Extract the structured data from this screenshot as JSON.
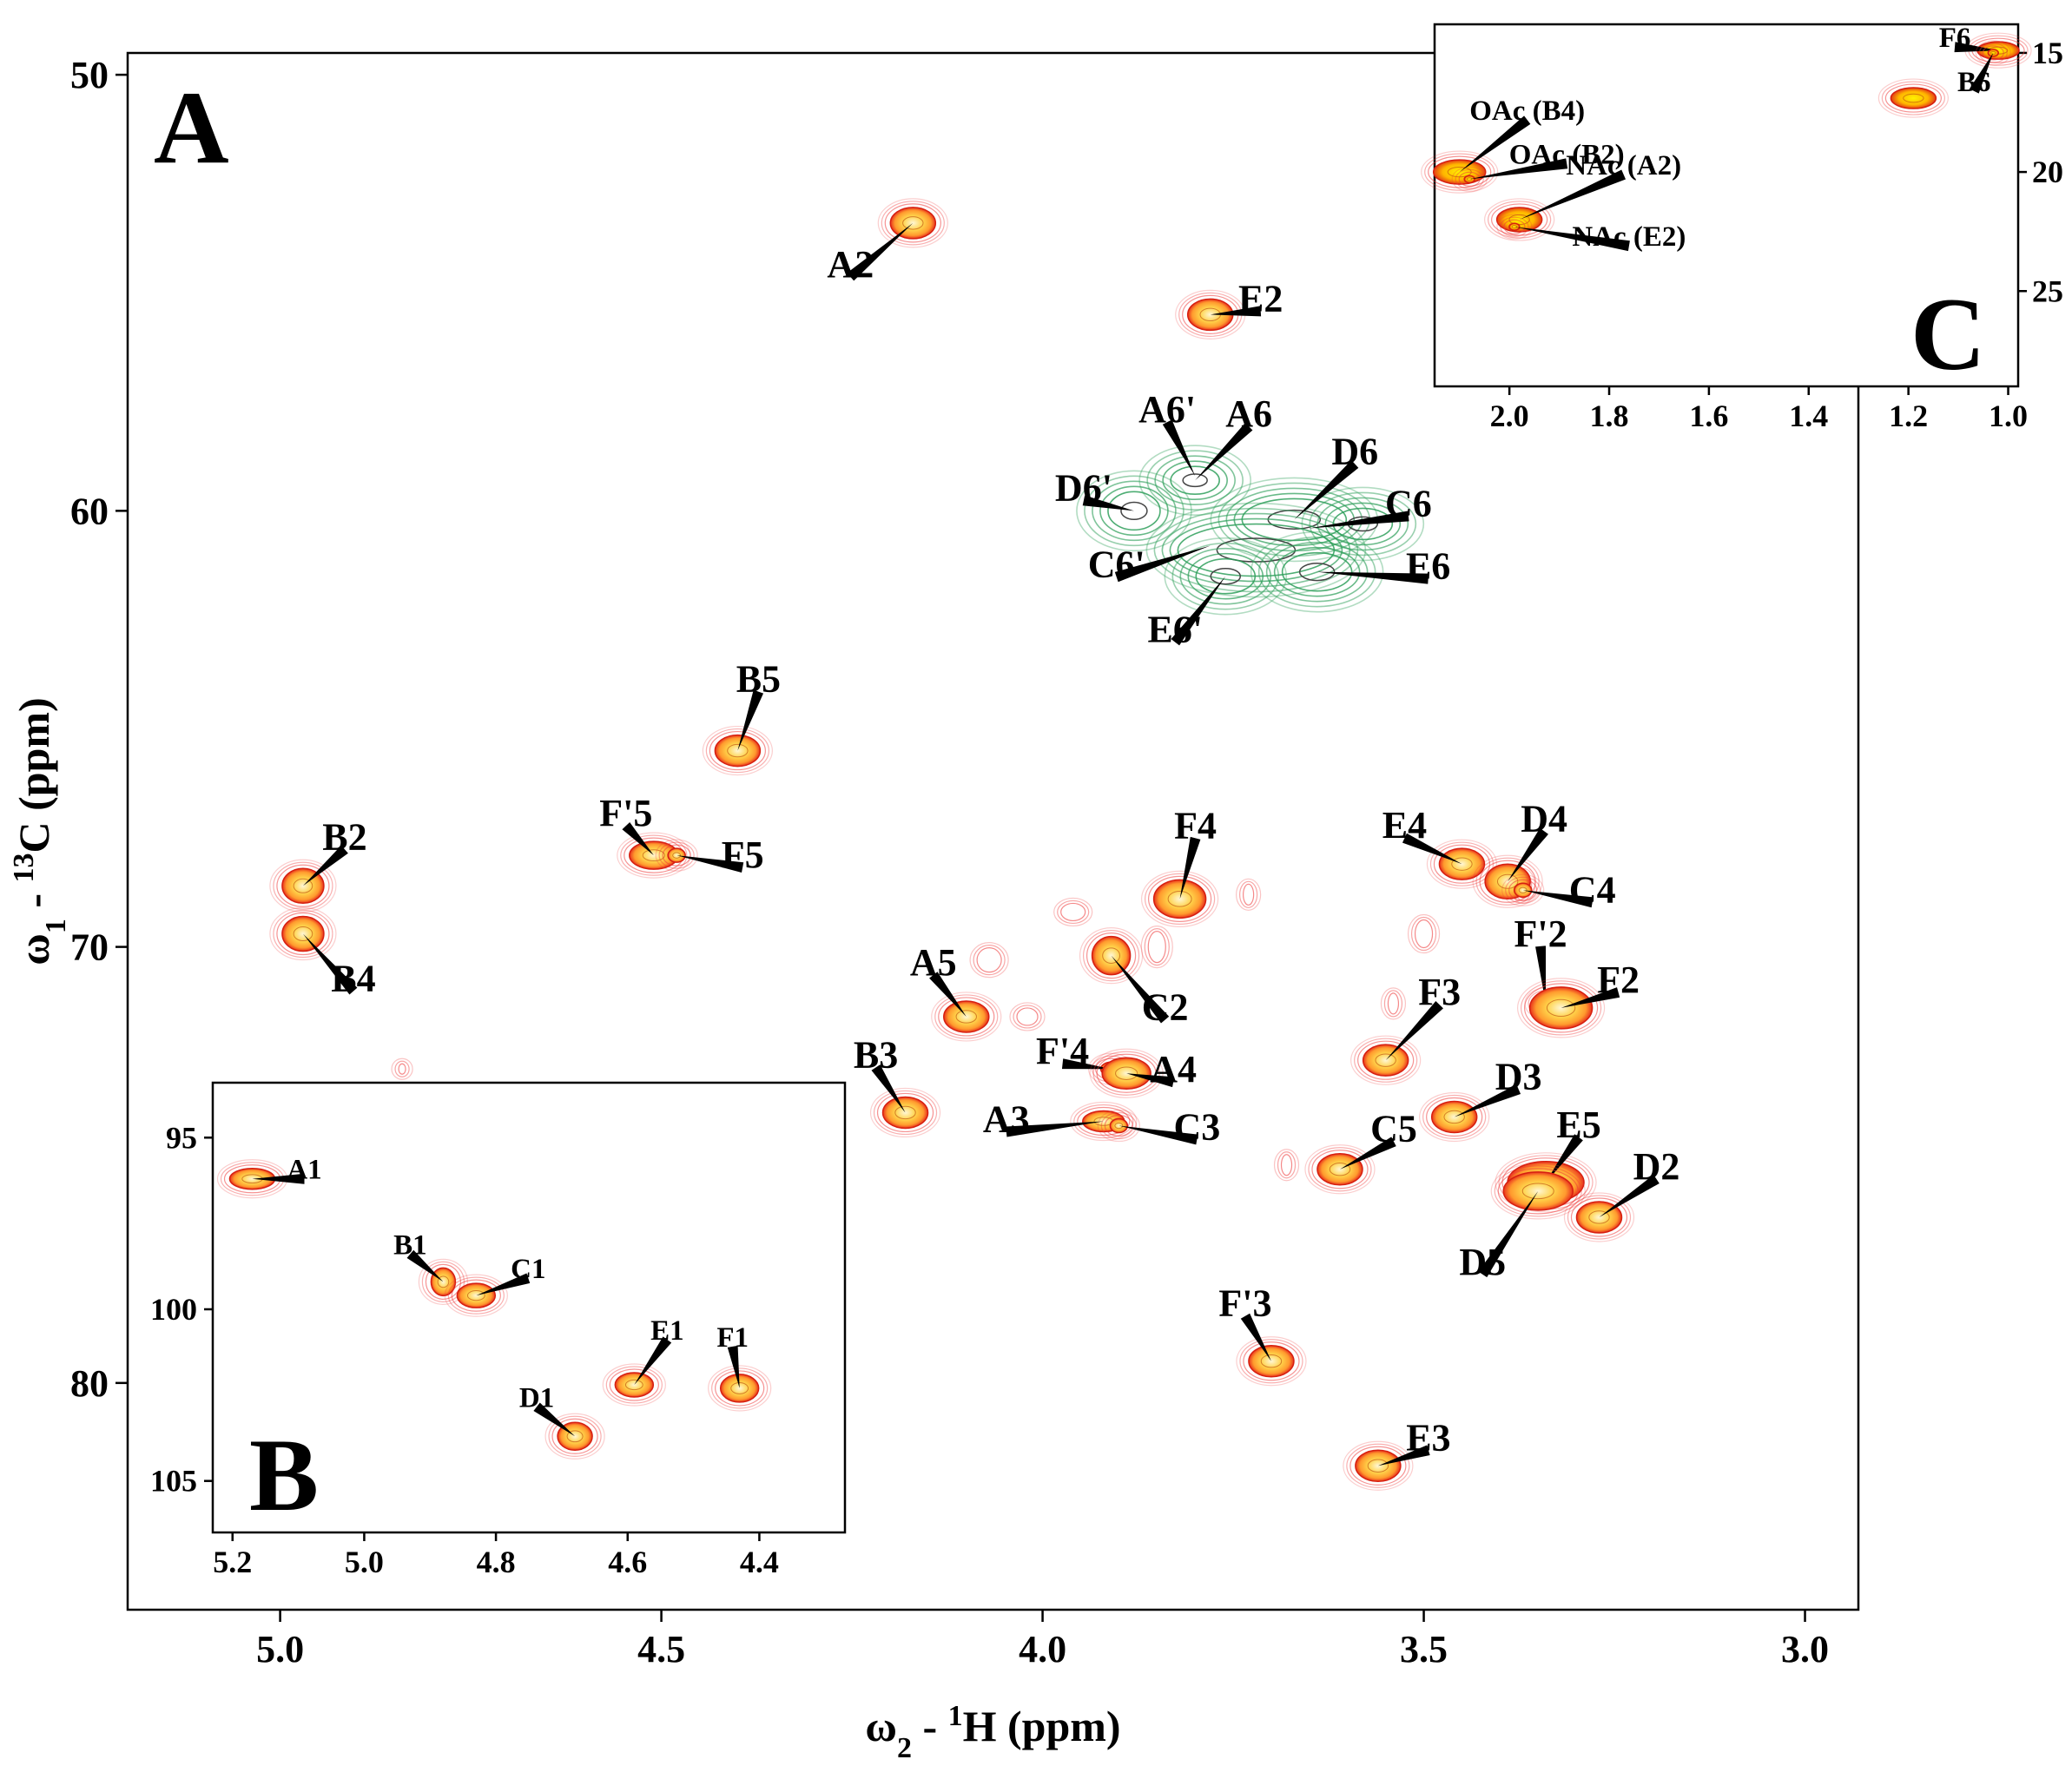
{
  "chart_data": [
    {
      "panel": "A",
      "type": "scatter",
      "subtype": "2D HSQC NMR spectrum",
      "xlabel_parts": [
        "ω",
        "2",
        " - ",
        "1",
        "H  (ppm)"
      ],
      "ylabel_parts": [
        "ω",
        "1",
        " - ",
        "13",
        "C  (ppm)"
      ],
      "xlim": [
        5.2,
        2.93
      ],
      "ylim": [
        49.5,
        85.2
      ],
      "x_ticks": [
        5.0,
        4.5,
        4.0,
        3.5,
        3.0
      ],
      "x_tick_labels": [
        "5.0",
        "4.5",
        "4.0",
        "3.5",
        "3.0"
      ],
      "y_ticks": [
        50,
        60,
        70,
        80
      ],
      "y_tick_labels": [
        "50",
        "60",
        "70",
        "80"
      ],
      "peaks": [
        {
          "label": "A2",
          "x": 4.17,
          "y": 53.4
        },
        {
          "label": "E2",
          "x": 3.78,
          "y": 55.5
        },
        {
          "label": "A6'",
          "x": 3.8,
          "y": 59.2
        },
        {
          "label": "A6",
          "x": 3.8,
          "y": 59.3
        },
        {
          "label": "D6'",
          "x": 3.88,
          "y": 60.0
        },
        {
          "label": "D6",
          "x": 3.67,
          "y": 60.2
        },
        {
          "label": "C6",
          "x": 3.65,
          "y": 60.4
        },
        {
          "label": "C6'",
          "x": 3.78,
          "y": 60.8
        },
        {
          "label": "E6",
          "x": 3.64,
          "y": 61.4
        },
        {
          "label": "E6'",
          "x": 3.76,
          "y": 61.5
        },
        {
          "label": "B5",
          "x": 4.4,
          "y": 65.5
        },
        {
          "label": "F'5",
          "x": 4.51,
          "y": 67.9
        },
        {
          "label": "F5",
          "x": 4.48,
          "y": 67.9
        },
        {
          "label": "B2",
          "x": 4.97,
          "y": 68.6
        },
        {
          "label": "B4",
          "x": 4.97,
          "y": 69.7
        },
        {
          "label": "F4",
          "x": 3.82,
          "y": 68.9
        },
        {
          "label": "E4",
          "x": 3.45,
          "y": 68.1
        },
        {
          "label": "D4",
          "x": 3.39,
          "y": 68.5
        },
        {
          "label": "C4",
          "x": 3.37,
          "y": 68.7
        },
        {
          "label": "C2",
          "x": 3.91,
          "y": 70.2
        },
        {
          "label": "F'2",
          "x": 3.34,
          "y": 71.3
        },
        {
          "label": "F2",
          "x": 3.32,
          "y": 71.4
        },
        {
          "label": "A5",
          "x": 4.1,
          "y": 71.6
        },
        {
          "label": "F3",
          "x": 3.55,
          "y": 72.6
        },
        {
          "label": "F'4",
          "x": 3.91,
          "y": 72.8
        },
        {
          "label": "A4",
          "x": 3.89,
          "y": 72.9
        },
        {
          "label": "B3",
          "x": 4.18,
          "y": 73.8
        },
        {
          "label": "A3",
          "x": 3.92,
          "y": 74.0
        },
        {
          "label": "C3",
          "x": 3.9,
          "y": 74.1
        },
        {
          "label": "D3",
          "x": 3.46,
          "y": 73.9
        },
        {
          "label": "C5",
          "x": 3.61,
          "y": 75.1
        },
        {
          "label": "E5",
          "x": 3.34,
          "y": 75.4
        },
        {
          "label": "D5",
          "x": 3.35,
          "y": 75.6
        },
        {
          "label": "D2",
          "x": 3.27,
          "y": 76.2
        },
        {
          "label": "F'3",
          "x": 3.7,
          "y": 79.5
        },
        {
          "label": "E3",
          "x": 3.56,
          "y": 81.9
        }
      ]
    },
    {
      "panel": "B",
      "type": "scatter",
      "subtype": "inset anomeric region",
      "xlim": [
        5.23,
        4.27
      ],
      "ylim": [
        93.4,
        106.5
      ],
      "x_ticks": [
        5.2,
        5.0,
        4.8,
        4.6,
        4.4
      ],
      "x_tick_labels": [
        "5.2",
        "5.0",
        "4.8",
        "4.6",
        "4.4"
      ],
      "y_ticks": [
        95,
        100,
        105
      ],
      "y_tick_labels": [
        "95",
        "100",
        "105"
      ],
      "peaks": [
        {
          "label": "A1",
          "x": 5.17,
          "y": 96.2
        },
        {
          "label": "B1",
          "x": 4.88,
          "y": 99.2
        },
        {
          "label": "C1",
          "x": 4.83,
          "y": 99.6
        },
        {
          "label": "E1",
          "x": 4.59,
          "y": 102.2
        },
        {
          "label": "F1",
          "x": 4.43,
          "y": 102.3
        },
        {
          "label": "D1",
          "x": 4.68,
          "y": 103.7
        }
      ]
    },
    {
      "panel": "C",
      "type": "scatter",
      "subtype": "inset methyl region",
      "xlim": [
        2.15,
        0.98
      ],
      "ylim": [
        13.8,
        29.0
      ],
      "x_ticks": [
        2.0,
        1.8,
        1.6,
        1.4,
        1.2,
        1.0
      ],
      "x_tick_labels": [
        "2.0",
        "1.8",
        "1.6",
        "1.4",
        "1.2",
        "1.0"
      ],
      "y_ticks": [
        15,
        20,
        25
      ],
      "y_tick_labels": [
        "15",
        "20",
        "25"
      ],
      "peaks": [
        {
          "label": "F6",
          "x": 1.02,
          "y": 14.9
        },
        {
          "label": "B6",
          "x": 1.03,
          "y": 15.0
        },
        {
          "label": "OAc (B4)",
          "x": 2.1,
          "y": 20.0
        },
        {
          "label": "OAc (B2)",
          "x": 2.08,
          "y": 20.3
        },
        {
          "label": "NAc (A2)",
          "x": 1.98,
          "y": 22.0
        },
        {
          "label": "NAc (E2)",
          "x": 1.99,
          "y": 22.3
        },
        {
          "label": "",
          "x": 1.19,
          "y": 16.9
        }
      ]
    }
  ]
}
